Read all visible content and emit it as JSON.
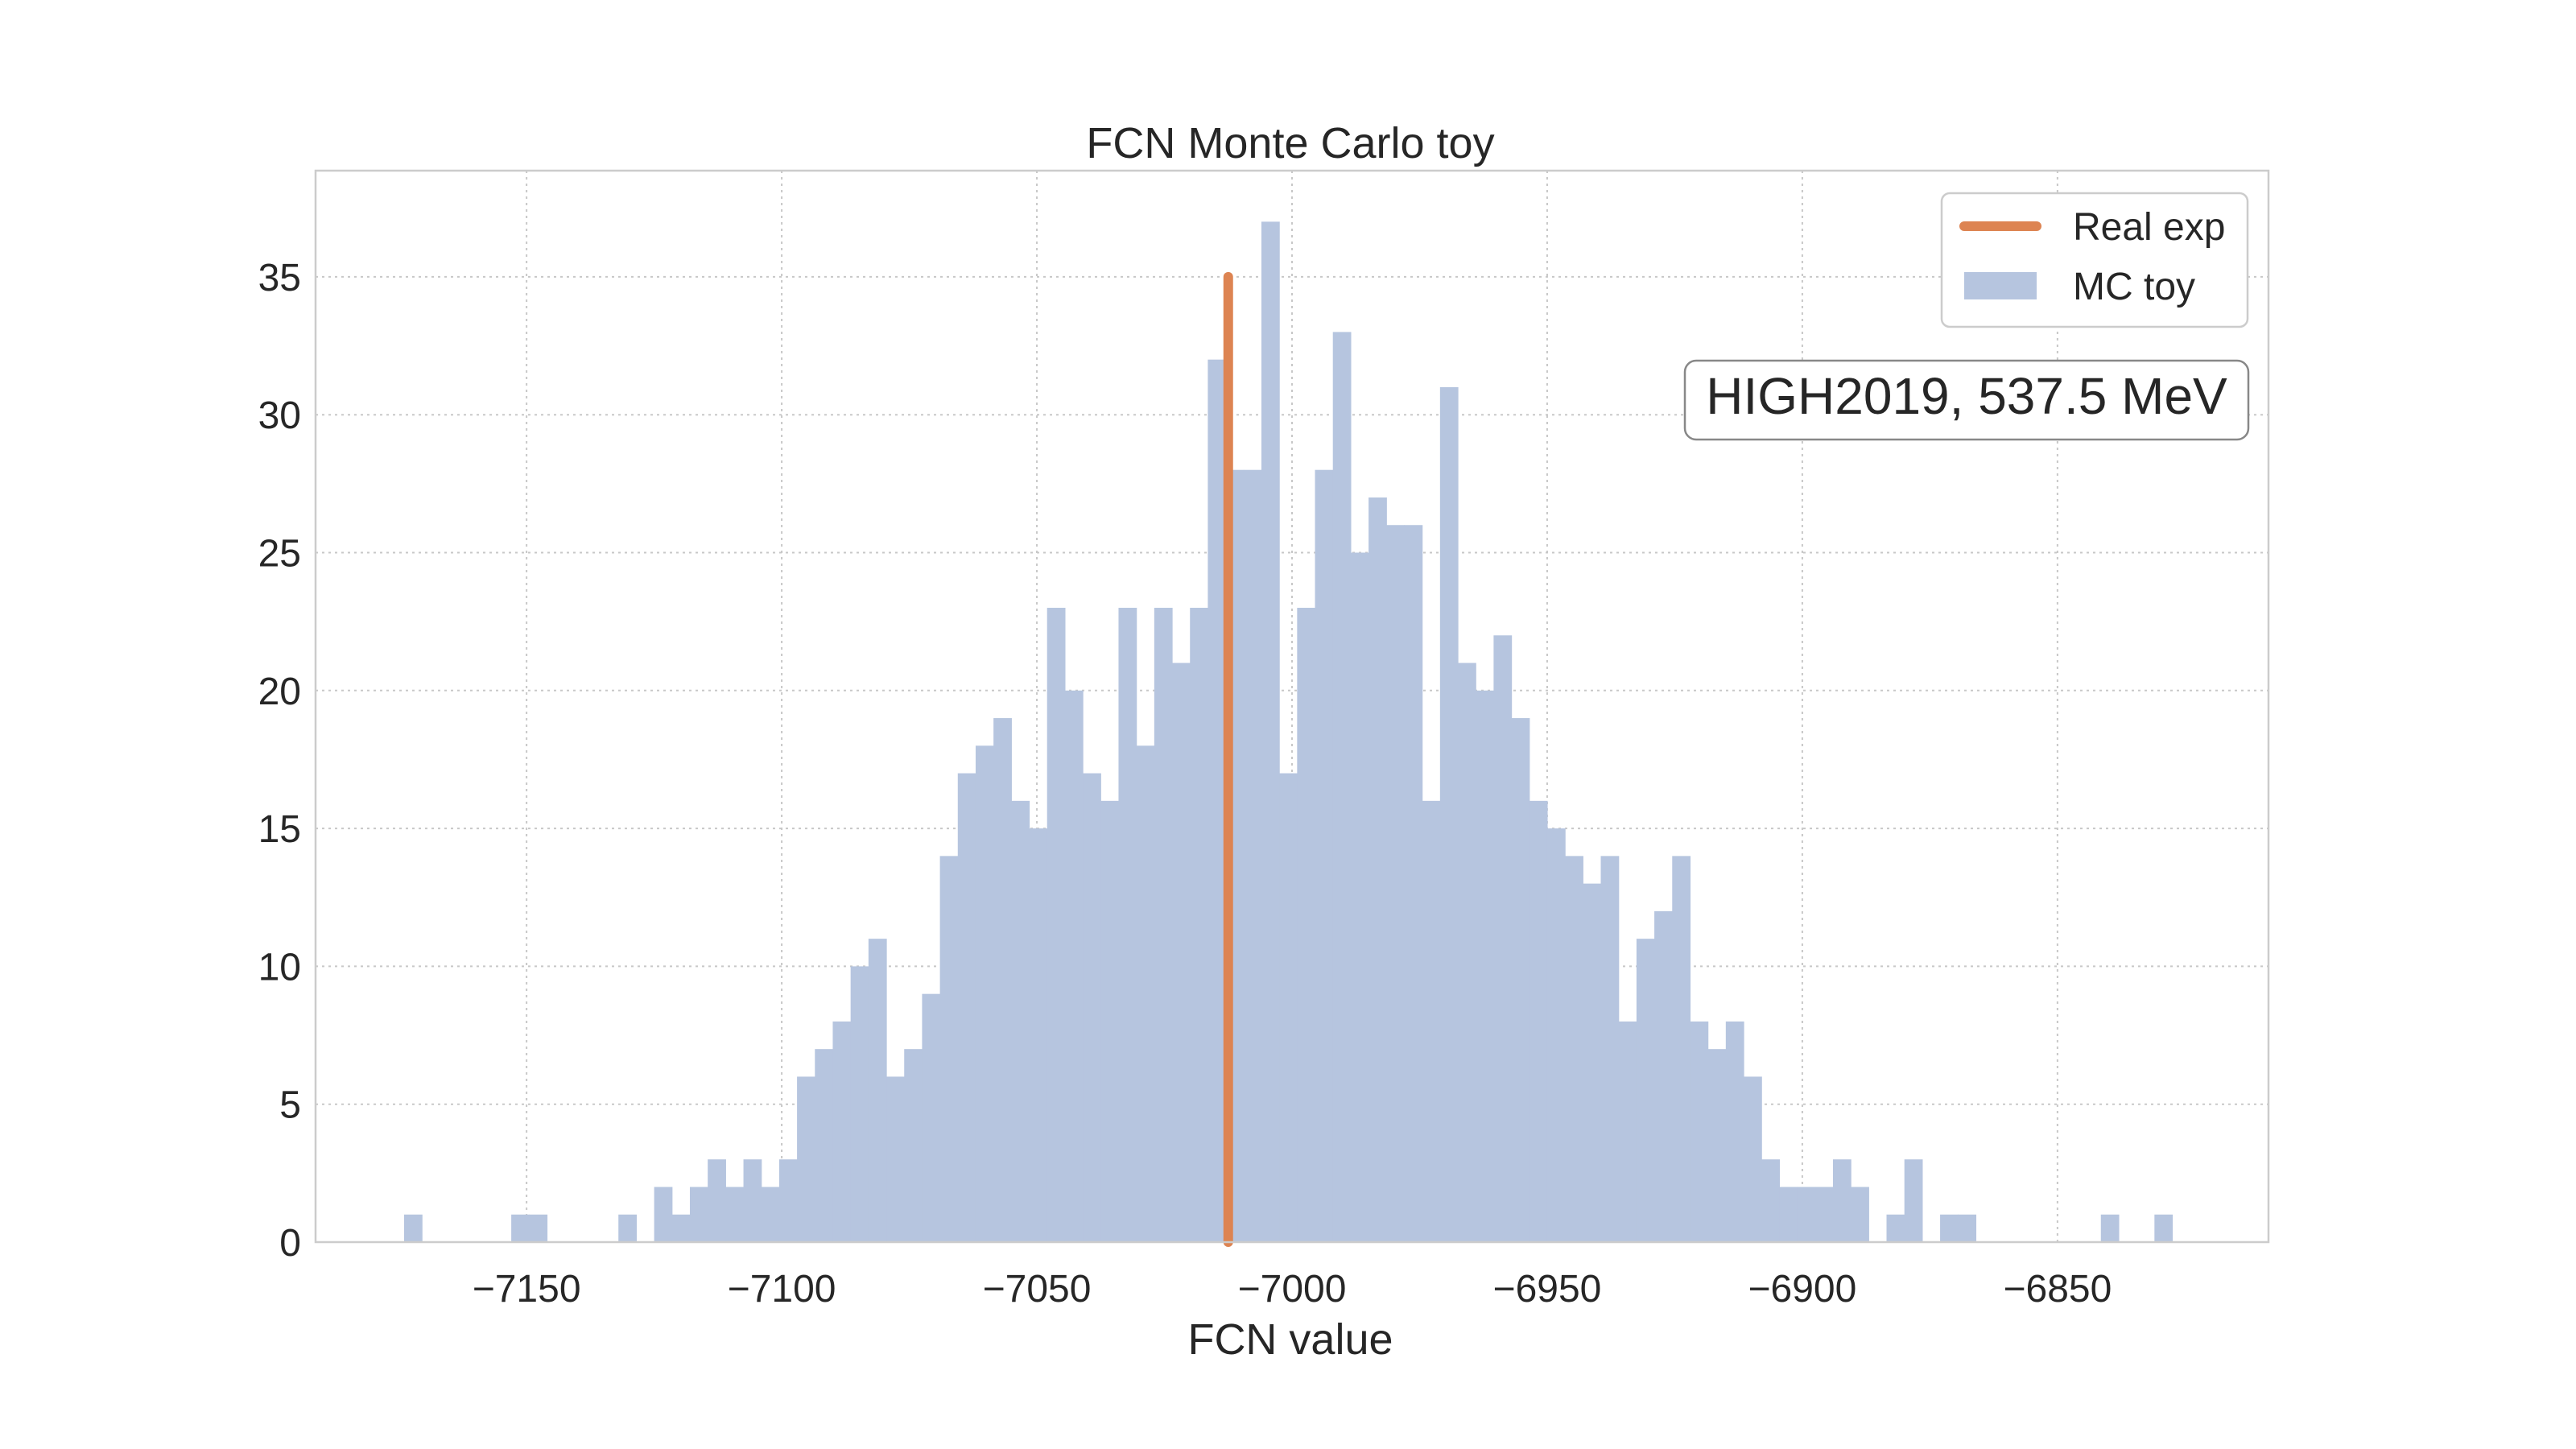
{
  "chart_data": {
    "type": "bar",
    "title": "FCN Monte Carlo toy",
    "xlabel": "FCN value",
    "ylabel": "",
    "xlim": [
      -7191.35,
      -6808.65
    ],
    "ylim": [
      0,
      38.85
    ],
    "xticks": [
      -7150,
      -7100,
      -7050,
      -7000,
      -6950,
      -6900,
      -6850
    ],
    "xtick_labels": [
      "−7150",
      "−7100",
      "−7050",
      "−7000",
      "−6950",
      "−6900",
      "−6850"
    ],
    "yticks": [
      0,
      5,
      10,
      15,
      20,
      25,
      30,
      35
    ],
    "ytick_labels": [
      "0",
      "5",
      "10",
      "15",
      "20",
      "25",
      "30",
      "35"
    ],
    "grid": true,
    "legend_position": "top-right",
    "bin_start": -7174,
    "bin_width": 3.5,
    "series": [
      {
        "name": "MC toy",
        "kind": "histogram",
        "color": "#b6c5df",
        "values": [
          1,
          0,
          0,
          0,
          0,
          0,
          1,
          1,
          0,
          0,
          0,
          0,
          1,
          0,
          2,
          1,
          2,
          3,
          2,
          3,
          2,
          3,
          6,
          7,
          8,
          10,
          11,
          6,
          7,
          9,
          14,
          17,
          18,
          19,
          16,
          15,
          23,
          20,
          17,
          16,
          23,
          18,
          23,
          21,
          23,
          32,
          28,
          28,
          37,
          17,
          23,
          28,
          33,
          25,
          27,
          26,
          26,
          16,
          31,
          21,
          20,
          22,
          19,
          16,
          15,
          14,
          13,
          14,
          8,
          11,
          12,
          14,
          8,
          7,
          8,
          6,
          3,
          2,
          2,
          2,
          3,
          2,
          0,
          1,
          3,
          0,
          1,
          1,
          0,
          0,
          0,
          0,
          0,
          0,
          0,
          1,
          0,
          0,
          1
        ]
      },
      {
        "name": "Real exp",
        "kind": "vline",
        "color": "#dd8452",
        "x": -7012.5,
        "y_from": 0,
        "y_to": 35
      }
    ],
    "annotation": "HIGH2019, 537.5 MeV"
  }
}
